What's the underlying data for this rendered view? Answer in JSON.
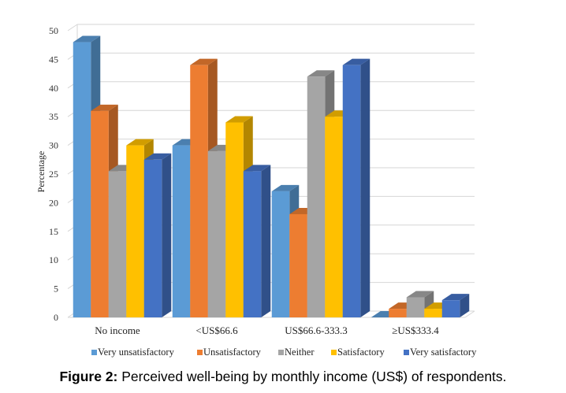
{
  "chart_data": {
    "type": "bar",
    "title": "",
    "xlabel": "",
    "ylabel": "Percentage",
    "ylim": [
      0,
      50
    ],
    "yticks": [
      0,
      5,
      10,
      15,
      20,
      25,
      30,
      35,
      40,
      45,
      50
    ],
    "grid": true,
    "legend_position": "bottom",
    "categories": [
      "No income",
      "<US$66.6",
      "US$66.6-333.3",
      "≥US$333.4"
    ],
    "series": [
      {
        "name": "Very unsatisfactory",
        "color": "#5b9bd5",
        "values": [
          48,
          30,
          22,
          0
        ]
      },
      {
        "name": "Unsatisfactory",
        "color": "#ed7d31",
        "values": [
          36,
          44,
          18,
          1.5
        ]
      },
      {
        "name": "Neither",
        "color": "#a5a5a5",
        "values": [
          25.5,
          29,
          42,
          3.5
        ]
      },
      {
        "name": "Satisfactory",
        "color": "#ffc000",
        "values": [
          30,
          34,
          35,
          1.5
        ]
      },
      {
        "name": "Very satisfactory",
        "color": "#4472c4",
        "values": [
          27.5,
          25.5,
          44,
          3
        ]
      }
    ]
  },
  "caption": {
    "label": "Figure 2:",
    "text": " Perceived well-being by monthly income (US$) of respondents."
  }
}
